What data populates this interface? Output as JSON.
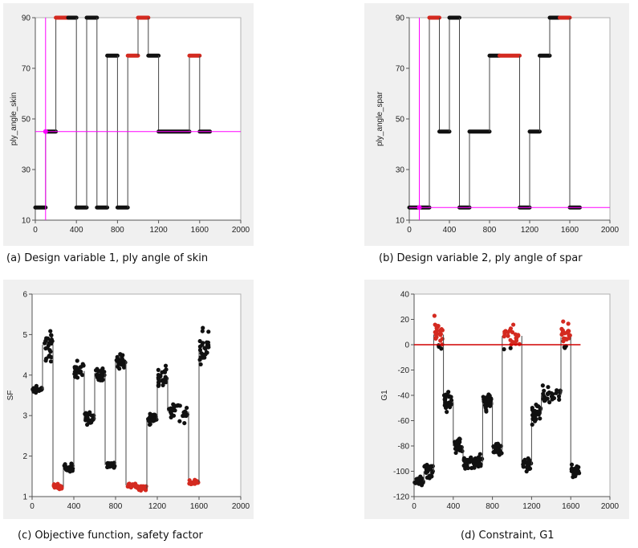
{
  "captions": {
    "a": "(a) Design variable 1, ply angle of skin",
    "b": "(b) Design variable 2, ply angle of spar",
    "c": "(c) Objective function, safety factor",
    "d": "(d) Constraint, G1"
  },
  "colors": {
    "feasible": "#111111",
    "infeasible": "#d42a20",
    "guide": "#ff00ff",
    "constraint_line": "#d00000",
    "connector": "#444444",
    "plot_bg": "#ffffff",
    "frame_bg": "#f0f0f0"
  },
  "chart_data": [
    {
      "id": "a",
      "type": "scatter",
      "title": "",
      "xlabel": "",
      "ylabel": "ply_angle_skin",
      "xlim": [
        0,
        2000
      ],
      "ylim": [
        10,
        90
      ],
      "xticks": [
        0,
        400,
        800,
        1200,
        1600,
        2000
      ],
      "yticks": [
        10,
        30,
        50,
        70,
        90
      ],
      "grid": false,
      "connected": true,
      "guides": {
        "x": 100,
        "y": 45
      },
      "segments": [
        {
          "x0": 0,
          "x1": 100,
          "y": 15,
          "status": "feasible"
        },
        {
          "x0": 100,
          "x1": 200,
          "y": 45,
          "status": "feasible"
        },
        {
          "x0": 200,
          "x1": 320,
          "y": 90,
          "status": "infeasible"
        },
        {
          "x0": 320,
          "x1": 400,
          "y": 90,
          "status": "feasible"
        },
        {
          "x0": 400,
          "x1": 500,
          "y": 15,
          "status": "feasible"
        },
        {
          "x0": 500,
          "x1": 600,
          "y": 90,
          "status": "feasible"
        },
        {
          "x0": 600,
          "x1": 700,
          "y": 15,
          "status": "feasible"
        },
        {
          "x0": 700,
          "x1": 800,
          "y": 75,
          "status": "feasible"
        },
        {
          "x0": 800,
          "x1": 900,
          "y": 15,
          "status": "feasible"
        },
        {
          "x0": 900,
          "x1": 1000,
          "y": 75,
          "status": "infeasible"
        },
        {
          "x0": 1000,
          "x1": 1100,
          "y": 90,
          "status": "infeasible"
        },
        {
          "x0": 1100,
          "x1": 1200,
          "y": 75,
          "status": "feasible"
        },
        {
          "x0": 1200,
          "x1": 1500,
          "y": 45,
          "status": "feasible"
        },
        {
          "x0": 1500,
          "x1": 1600,
          "y": 75,
          "status": "infeasible"
        },
        {
          "x0": 1600,
          "x1": 1700,
          "y": 45,
          "status": "feasible"
        }
      ]
    },
    {
      "id": "b",
      "type": "scatter",
      "title": "",
      "xlabel": "",
      "ylabel": "ply_angle_spar",
      "xlim": [
        0,
        2000
      ],
      "ylim": [
        10,
        90
      ],
      "xticks": [
        0,
        400,
        800,
        1200,
        1600,
        2000
      ],
      "yticks": [
        10,
        30,
        50,
        70,
        90
      ],
      "grid": false,
      "connected": true,
      "guides": {
        "x": 100,
        "y": 15
      },
      "segments": [
        {
          "x0": 0,
          "x1": 200,
          "y": 15,
          "status": "feasible"
        },
        {
          "x0": 200,
          "x1": 300,
          "y": 90,
          "status": "infeasible"
        },
        {
          "x0": 300,
          "x1": 400,
          "y": 45,
          "status": "feasible"
        },
        {
          "x0": 400,
          "x1": 500,
          "y": 90,
          "status": "feasible"
        },
        {
          "x0": 500,
          "x1": 600,
          "y": 15,
          "status": "feasible"
        },
        {
          "x0": 600,
          "x1": 800,
          "y": 45,
          "status": "feasible"
        },
        {
          "x0": 800,
          "x1": 900,
          "y": 75,
          "status": "feasible"
        },
        {
          "x0": 900,
          "x1": 1100,
          "y": 75,
          "status": "infeasible"
        },
        {
          "x0": 1100,
          "x1": 1200,
          "y": 15,
          "status": "feasible"
        },
        {
          "x0": 1200,
          "x1": 1300,
          "y": 45,
          "status": "feasible"
        },
        {
          "x0": 1300,
          "x1": 1400,
          "y": 75,
          "status": "feasible"
        },
        {
          "x0": 1400,
          "x1": 1500,
          "y": 90,
          "status": "feasible"
        },
        {
          "x0": 1500,
          "x1": 1600,
          "y": 90,
          "status": "infeasible"
        },
        {
          "x0": 1600,
          "x1": 1700,
          "y": 15,
          "status": "feasible"
        }
      ]
    },
    {
      "id": "c",
      "type": "scatter",
      "title": "",
      "xlabel": "",
      "ylabel": "SF",
      "xlim": [
        0,
        2000
      ],
      "ylim": [
        1,
        6
      ],
      "xticks": [
        0,
        400,
        800,
        1200,
        1600,
        2000
      ],
      "yticks": [
        1,
        2,
        3,
        4,
        5,
        6
      ],
      "grid": false,
      "connected": true,
      "clusters": [
        {
          "x0": 0,
          "x1": 100,
          "y": 3.65,
          "spread": 0.12,
          "status": "feasible"
        },
        {
          "x0": 100,
          "x1": 200,
          "y": 4.75,
          "spread": 0.6,
          "status": "feasible"
        },
        {
          "x0": 200,
          "x1": 300,
          "y": 1.25,
          "spread": 0.08,
          "status": "infeasible"
        },
        {
          "x0": 300,
          "x1": 400,
          "y": 1.72,
          "spread": 0.18,
          "status": "feasible"
        },
        {
          "x0": 400,
          "x1": 500,
          "y": 4.1,
          "spread": 0.3,
          "status": "feasible"
        },
        {
          "x0": 500,
          "x1": 600,
          "y": 2.9,
          "spread": 0.25,
          "status": "feasible"
        },
        {
          "x0": 600,
          "x1": 700,
          "y": 4.05,
          "spread": 0.28,
          "status": "feasible"
        },
        {
          "x0": 700,
          "x1": 800,
          "y": 1.78,
          "spread": 0.15,
          "status": "feasible"
        },
        {
          "x0": 800,
          "x1": 900,
          "y": 4.35,
          "spread": 0.28,
          "status": "feasible"
        },
        {
          "x0": 900,
          "x1": 1000,
          "y": 1.28,
          "spread": 0.07,
          "status": "infeasible"
        },
        {
          "x0": 1000,
          "x1": 1100,
          "y": 1.2,
          "spread": 0.07,
          "status": "infeasible"
        },
        {
          "x0": 1100,
          "x1": 1200,
          "y": 2.9,
          "spread": 0.25,
          "status": "feasible"
        },
        {
          "x0": 1200,
          "x1": 1300,
          "y": 3.95,
          "spread": 0.35,
          "status": "feasible"
        },
        {
          "x0": 1300,
          "x1": 1500,
          "y": 3.1,
          "spread": 0.4,
          "status": "feasible"
        },
        {
          "x0": 1500,
          "x1": 1600,
          "y": 1.35,
          "spread": 0.08,
          "status": "infeasible"
        },
        {
          "x0": 1600,
          "x1": 1700,
          "y": 4.7,
          "spread": 0.7,
          "status": "feasible"
        }
      ]
    },
    {
      "id": "d",
      "type": "scatter",
      "title": "",
      "xlabel": "",
      "ylabel": "G1",
      "xlim": [
        0,
        2000
      ],
      "ylim": [
        -120,
        40
      ],
      "xticks": [
        0,
        400,
        800,
        1200,
        1600,
        2000
      ],
      "yticks": [
        -120,
        -100,
        -80,
        -60,
        -40,
        -20,
        0,
        20,
        40
      ],
      "grid": false,
      "connected": true,
      "constraint": {
        "y": 0,
        "x0": 0,
        "x1": 1700
      },
      "clusters": [
        {
          "x0": 0,
          "x1": 100,
          "y": -108,
          "spread": 6,
          "status": "feasible"
        },
        {
          "x0": 100,
          "x1": 200,
          "y": -100,
          "spread": 8,
          "status": "feasible"
        },
        {
          "x0": 200,
          "x1": 300,
          "y": 8,
          "spread": 16,
          "status": "mixed"
        },
        {
          "x0": 300,
          "x1": 400,
          "y": -45,
          "spread": 10,
          "status": "feasible"
        },
        {
          "x0": 400,
          "x1": 500,
          "y": -80,
          "spread": 10,
          "status": "feasible"
        },
        {
          "x0": 500,
          "x1": 600,
          "y": -93,
          "spread": 8,
          "status": "feasible"
        },
        {
          "x0": 600,
          "x1": 700,
          "y": -93,
          "spread": 8,
          "status": "feasible"
        },
        {
          "x0": 700,
          "x1": 800,
          "y": -45,
          "spread": 10,
          "status": "feasible"
        },
        {
          "x0": 800,
          "x1": 900,
          "y": -83,
          "spread": 8,
          "status": "feasible"
        },
        {
          "x0": 900,
          "x1": 1100,
          "y": 7,
          "spread": 13,
          "status": "mixed"
        },
        {
          "x0": 1100,
          "x1": 1200,
          "y": -95,
          "spread": 8,
          "status": "feasible"
        },
        {
          "x0": 1200,
          "x1": 1300,
          "y": -55,
          "spread": 12,
          "status": "feasible"
        },
        {
          "x0": 1300,
          "x1": 1500,
          "y": -40,
          "spread": 12,
          "status": "feasible"
        },
        {
          "x0": 1500,
          "x1": 1600,
          "y": 6,
          "spread": 14,
          "status": "mixed"
        },
        {
          "x0": 1600,
          "x1": 1700,
          "y": -100,
          "spread": 7,
          "status": "feasible"
        }
      ]
    }
  ]
}
